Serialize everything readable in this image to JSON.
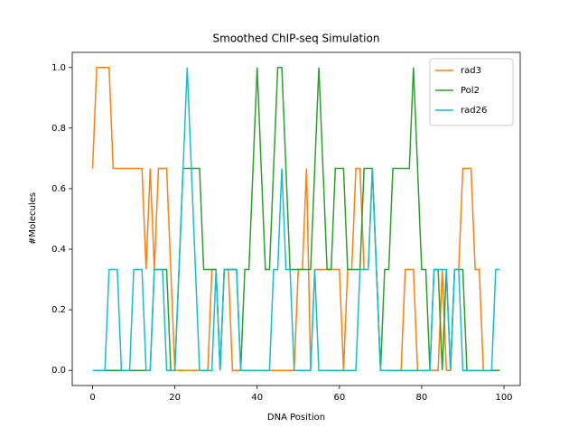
{
  "chart_data": {
    "type": "line",
    "title": "Smoothed ChIP-seq Simulation",
    "xlabel": "DNA Position",
    "ylabel": "#Molecules",
    "x": [
      0,
      1,
      2,
      3,
      4,
      5,
      6,
      7,
      8,
      9,
      10,
      11,
      12,
      13,
      14,
      15,
      16,
      17,
      18,
      19,
      20,
      21,
      22,
      23,
      24,
      25,
      26,
      27,
      28,
      29,
      30,
      31,
      32,
      33,
      34,
      35,
      36,
      37,
      38,
      39,
      40,
      41,
      42,
      43,
      44,
      45,
      46,
      47,
      48,
      49,
      50,
      51,
      52,
      53,
      54,
      55,
      56,
      57,
      58,
      59,
      60,
      61,
      62,
      63,
      64,
      65,
      66,
      67,
      68,
      69,
      70,
      71,
      72,
      73,
      74,
      75,
      76,
      77,
      78,
      79,
      80,
      81,
      82,
      83,
      84,
      85,
      86,
      87,
      88,
      89,
      90,
      91,
      92,
      93,
      94,
      95,
      96,
      97,
      98,
      99
    ],
    "series": [
      {
        "name": "rad3",
        "color": "#ff7f0e",
        "values": [
          0.667,
          1,
          1,
          1,
          1,
          0.667,
          0.667,
          0.667,
          0.667,
          0.667,
          0.667,
          0.667,
          0.667,
          0.333,
          0.667,
          0.333,
          0.667,
          0.667,
          0.667,
          0.333,
          0,
          0,
          0,
          0,
          0,
          0,
          0,
          0,
          0,
          0.333,
          0.333,
          0,
          0.333,
          0.333,
          0,
          0,
          0,
          0,
          0,
          0,
          0,
          0,
          0,
          0,
          0,
          0,
          0,
          0,
          0,
          0,
          0.333,
          0.333,
          0.667,
          0,
          0.333,
          0.333,
          0.333,
          0.333,
          0.333,
          0.333,
          0.333,
          0,
          0.333,
          0.333,
          0.667,
          0.667,
          0.333,
          0.333,
          0.667,
          0.333,
          0,
          0,
          0,
          0,
          0,
          0,
          0.333,
          0.333,
          0.333,
          0,
          0,
          0,
          0,
          0,
          0,
          0.333,
          0,
          0,
          0.333,
          0.333,
          0.667,
          0.667,
          0.667,
          0.333,
          0.333,
          0,
          0,
          0,
          0,
          0
        ]
      },
      {
        "name": "Pol2",
        "color": "#2ca02c",
        "values": [
          0,
          0,
          0,
          0,
          0,
          0,
          0,
          0,
          0,
          0,
          0,
          0,
          0,
          0,
          0,
          0.333,
          0.333,
          0.333,
          0.333,
          0,
          0,
          0.333,
          0.667,
          0.667,
          0.667,
          0.667,
          0.667,
          0.333,
          0.333,
          0.333,
          0.333,
          0,
          0.333,
          0.333,
          0.333,
          0.333,
          0,
          0.333,
          0.333,
          0.667,
          1,
          0.667,
          0.333,
          0.333,
          0.667,
          1,
          1,
          0.667,
          0.333,
          0.333,
          0.333,
          0.333,
          0.333,
          0.333,
          0.667,
          1,
          0.667,
          0.333,
          0.333,
          0.667,
          0.667,
          0.667,
          0.333,
          0.333,
          0.333,
          0.333,
          0.667,
          0.667,
          0.667,
          0.333,
          0,
          0.333,
          0.333,
          0.667,
          0.667,
          0.667,
          0.667,
          0.667,
          1,
          0.667,
          0.333,
          0.333,
          0,
          0.333,
          0.333,
          0,
          0.333,
          0,
          0.333,
          0.333,
          0.333,
          0,
          0,
          0,
          0,
          0,
          0,
          0,
          0,
          0
        ]
      },
      {
        "name": "rad26",
        "color": "#17becf",
        "values": [
          0,
          0,
          0,
          0,
          0.333,
          0.333,
          0.333,
          0,
          0,
          0,
          0.333,
          0.333,
          0.333,
          0,
          0,
          0.333,
          0.333,
          0.333,
          0,
          0,
          0,
          0.333,
          0.667,
          1,
          0.667,
          0.333,
          0,
          0,
          0,
          0,
          0.333,
          0,
          0.333,
          0.333,
          0.333,
          0.333,
          0,
          0,
          0,
          0,
          0,
          0,
          0,
          0,
          0.333,
          0.333,
          0.667,
          0.333,
          0.333,
          0,
          0,
          0,
          0,
          0,
          0.333,
          0,
          0,
          0,
          0,
          0,
          0,
          0,
          0,
          0,
          0,
          0.333,
          0.333,
          0.333,
          0.667,
          0.333,
          0,
          0,
          0,
          0,
          0,
          0,
          0,
          0,
          0,
          0,
          0,
          0,
          0,
          0.333,
          0.333,
          0.333,
          0.333,
          0,
          0.333,
          0.333,
          0,
          0,
          0,
          0,
          0,
          0,
          0,
          0,
          0.333,
          0.333
        ]
      }
    ],
    "xlim": [
      -4.95,
      103.95
    ],
    "ylim": [
      -0.05,
      1.05
    ],
    "xticks": [
      0,
      20,
      40,
      60,
      80,
      100
    ],
    "yticks": [
      {
        "value": 0,
        "label": "0.0"
      },
      0.2,
      0.4,
      0.6,
      0.8,
      {
        "value": 1,
        "label": "1.0"
      }
    ],
    "legend": "upper right"
  }
}
